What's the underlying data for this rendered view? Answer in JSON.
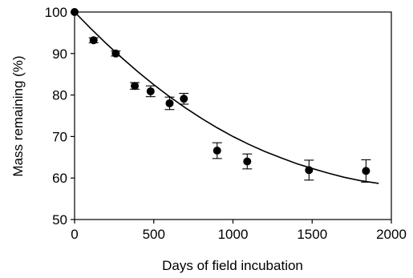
{
  "chart_data": {
    "type": "scatter",
    "title": "",
    "xlabel": "Days of field incubation",
    "ylabel": "Mass remaining (%)",
    "xlim": [
      0,
      2000
    ],
    "ylim": [
      50,
      100
    ],
    "xticks": [
      0,
      500,
      1000,
      1500,
      2000
    ],
    "yticks": [
      50,
      60,
      70,
      80,
      90,
      100
    ],
    "grid": false,
    "legend": "none",
    "series": [
      {
        "kind": "points_with_error_bars",
        "color": "#000000",
        "x": [
          0,
          120,
          260,
          380,
          480,
          600,
          690,
          900,
          1090,
          1480,
          1840
        ],
        "y": [
          100,
          93.2,
          90.0,
          82.2,
          80.9,
          78.0,
          79.1,
          66.6,
          64.0,
          61.9,
          61.7
        ],
        "err": [
          0,
          0.6,
          0.6,
          0.8,
          1.3,
          1.5,
          1.3,
          1.9,
          1.8,
          2.4,
          2.7
        ]
      },
      {
        "kind": "fit_line",
        "color": "#000000",
        "x": [
          0,
          100,
          200,
          300,
          400,
          500,
          600,
          700,
          800,
          900,
          1000,
          1100,
          1200,
          1300,
          1400,
          1500,
          1600,
          1700,
          1800,
          1920
        ],
        "y": [
          100,
          96.1,
          92.4,
          88.9,
          85.6,
          82.5,
          79.6,
          76.9,
          74.4,
          72.1,
          70.0,
          68.1,
          66.4,
          64.9,
          63.5,
          62.3,
          61.2,
          60.2,
          59.4,
          58.7
        ]
      }
    ]
  }
}
